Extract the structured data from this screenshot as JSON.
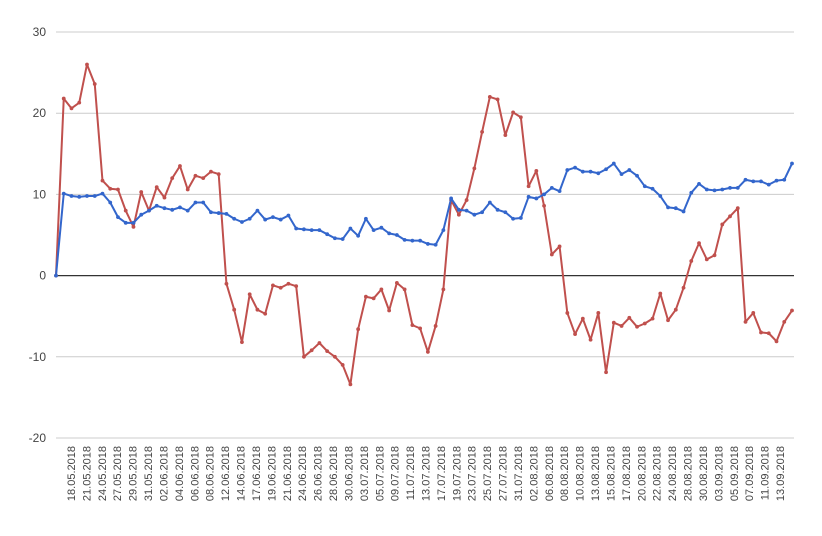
{
  "chart_data": {
    "type": "line",
    "title": "",
    "xlabel": "",
    "ylabel": "",
    "ylim": [
      -20,
      30
    ],
    "yticks": [
      -20,
      -10,
      0,
      10,
      20,
      30
    ],
    "grid": true,
    "legend": "none",
    "x_tick_labels": [
      "18.05.2018",
      "21.05.2018",
      "24.05.2018",
      "27.05.2018",
      "29.05.2018",
      "31.05.2018",
      "02.06.2018",
      "04.06.2018",
      "06.06.2018",
      "08.06.2018",
      "12.06.2018",
      "14.06.2018",
      "17.06.2018",
      "19.06.2018",
      "21.06.2018",
      "24.06.2018",
      "26.06.2018",
      "28.06.2018",
      "30.06.2018",
      "03.07.2018",
      "05.07.2018",
      "09.07.2018",
      "11.07.2018",
      "13.07.2018",
      "17.07.2018",
      "19.07.2018",
      "23.07.2018",
      "25.07.2018",
      "27.07.2018",
      "31.07.2018",
      "02.08.2018",
      "06.08.2018",
      "08.08.2018",
      "10.08.2018",
      "13.08.2018",
      "15.08.2018",
      "17.08.2018",
      "20.08.2018",
      "22.08.2018",
      "24.08.2018",
      "28.08.2018",
      "30.08.2018",
      "03.09.2018",
      "05.09.2018",
      "07.09.2018",
      "11.09.2018",
      "13.09.2018"
    ],
    "series": [
      {
        "color": "#3366cc",
        "values": [
          0,
          10.1,
          9.8,
          9.7,
          9.8,
          9.8,
          10.1,
          9,
          7.2,
          6.5,
          6.5,
          7.5,
          8,
          8.6,
          8.3,
          8.1,
          8.4,
          8,
          9,
          9,
          7.8,
          7.7,
          7.6,
          7,
          6.6,
          7,
          8,
          6.9,
          7.2,
          6.9,
          7.4,
          5.8,
          5.7,
          5.6,
          5.6,
          5.1,
          4.6,
          4.5,
          5.8,
          4.9,
          7,
          5.6,
          5.9,
          5.2,
          5,
          4.4,
          4.3,
          4.3,
          3.9,
          3.8,
          5.6,
          9.5,
          8.1,
          8,
          7.5,
          7.8,
          9,
          8.1,
          7.8,
          7,
          7.1,
          9.7,
          9.5,
          10,
          10.8,
          10.4,
          13,
          13.3,
          12.8,
          12.8,
          12.6,
          13.1,
          13.8,
          12.5,
          13,
          12.3,
          11,
          10.7,
          9.8,
          8.4,
          8.3,
          7.9,
          10.2,
          11.3,
          10.6,
          10.5,
          10.6,
          10.8,
          10.8,
          11.8,
          11.6,
          11.6,
          11.2,
          11.7,
          11.8,
          13.8
        ]
      },
      {
        "color": "#c0504d",
        "values": [
          0,
          21.8,
          20.6,
          21.3,
          26,
          23.6,
          11.7,
          10.7,
          10.6,
          8,
          6,
          10.3,
          8,
          10.9,
          9.6,
          12,
          13.5,
          10.6,
          12.3,
          12,
          12.8,
          12.5,
          -1,
          -4.2,
          -8.2,
          -2.3,
          -4.2,
          -4.7,
          -1.2,
          -1.5,
          -1,
          -1.3,
          -10,
          -9.2,
          -8.3,
          -9.3,
          -10,
          -11,
          -13.4,
          -6.6,
          -2.6,
          -2.8,
          -1.7,
          -4.3,
          -0.9,
          -1.7,
          -6.1,
          -6.5,
          -9.4,
          -6.2,
          -1.7,
          9.3,
          7.5,
          9.3,
          13.2,
          17.7,
          22,
          21.7,
          17.3,
          20.1,
          19.5,
          11,
          12.9,
          8.6,
          2.6,
          3.6,
          -4.6,
          -7.2,
          -5.3,
          -7.9,
          -4.6,
          -11.9,
          -5.8,
          -6.2,
          -5.2,
          -6.3,
          -5.9,
          -5.3,
          -2.2,
          -5.5,
          -4.2,
          -1.5,
          1.8,
          4,
          2,
          2.5,
          6.3,
          7.3,
          8.3,
          -5.7,
          -4.6,
          -7,
          -7.1,
          -8.1,
          -5.7,
          -4.3
        ]
      }
    ]
  }
}
